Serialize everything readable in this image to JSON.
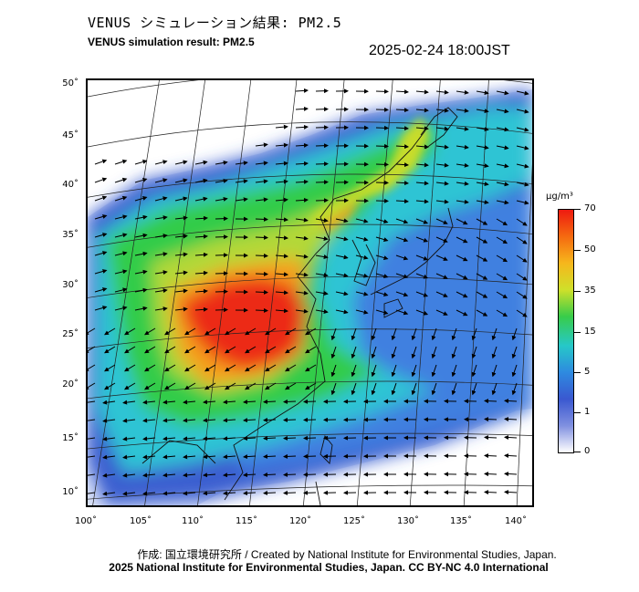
{
  "header": {
    "title_jp": "VENUS シミュレーション結果: PM2.5",
    "title_en": "VENUS simulation result: PM2.5",
    "timestamp": "2025-02-24 18:00JST"
  },
  "map": {
    "lat_labels": [
      "50˚",
      "45˚",
      "40˚",
      "35˚",
      "30˚",
      "25˚",
      "20˚",
      "15˚",
      "10˚"
    ],
    "lon_labels": [
      "100˚",
      "105˚",
      "110˚",
      "115˚",
      "120˚",
      "125˚",
      "130˚",
      "135˚",
      "140˚"
    ],
    "field_colors": {
      "dark_blue": "#2a4fc8",
      "blue": "#3f7fe0",
      "cyan": "#33c8d8",
      "green": "#2fcc4a",
      "yellow_green": "#a8d838",
      "orange": "#f5a51c",
      "red": "#ec2a14",
      "pale": "#dde4f8"
    }
  },
  "colorbar": {
    "unit": "μg/m³",
    "labels": [
      "70",
      "50",
      "35",
      "15",
      "5",
      "1",
      "0"
    ],
    "stops": [
      "#ee1a10",
      "#f56a10",
      "#f6b71c",
      "#cfe02a",
      "#38cc4a",
      "#26c8c8",
      "#2e8ae0",
      "#3a58d0",
      "#8090e0",
      "#ffffff"
    ]
  },
  "footer": {
    "credit": "作成: 国立環境研究所 / Created by National Institute for Environmental Studies, Japan.",
    "license": "2025 National Institute for Environmental Studies, Japan. CC BY-NC 4.0 International"
  }
}
